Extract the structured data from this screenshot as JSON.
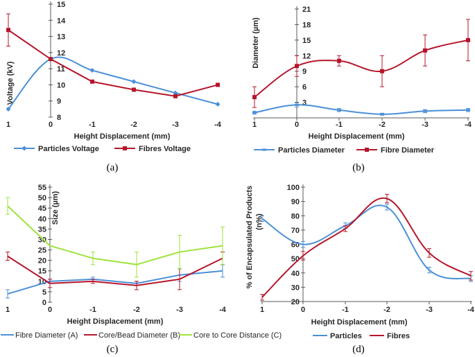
{
  "colors": {
    "blue": "#4a8fd8",
    "red": "#b5162b",
    "green": "#9ee33b",
    "axis": "#595959"
  },
  "chart_data": [
    {
      "id": "a",
      "type": "line",
      "caption": "(a)",
      "xlabel": "Height Displacement  (mm)",
      "ylabel": "Voltage (kV)",
      "x_ticks": [
        "1",
        "0",
        "-1",
        "-2",
        "-3",
        "-4"
      ],
      "ylim": [
        8,
        15
      ],
      "y_ticks": [
        8,
        9,
        10,
        11,
        12,
        13,
        14,
        15
      ],
      "series": [
        {
          "name": "Particles Voltage",
          "color": "blue",
          "marker": "diamond",
          "smooth": true,
          "values": [
            8.5,
            11.6,
            10.9,
            10.2,
            9.5,
            8.8
          ]
        },
        {
          "name": "Fibres Voltage",
          "color": "red",
          "marker": "square",
          "smooth": false,
          "values": [
            13.4,
            11.6,
            10.2,
            9.7,
            9.3,
            10.0
          ],
          "errors": [
            1.0,
            0,
            0,
            0,
            0,
            0
          ]
        }
      ]
    },
    {
      "id": "b",
      "type": "line",
      "caption": "(b)",
      "xlabel": "Height Displacement  (mm)",
      "ylabel": "Diameter (µm)",
      "x_ticks": [
        "1",
        "0",
        "-1",
        "-2",
        "-3",
        "-4"
      ],
      "ylim": [
        0,
        21
      ],
      "y_ticks": [
        3,
        6,
        9,
        12,
        15,
        18,
        21
      ],
      "series": [
        {
          "name": "Particles Diameter",
          "color": "blue",
          "marker": "dash",
          "smooth": true,
          "values": [
            1.0,
            2.5,
            1.5,
            0.7,
            1.3,
            1.5
          ],
          "errors": [
            0.3,
            0.4,
            0.3,
            0.2,
            0.3,
            0.3
          ]
        },
        {
          "name": "Fibre Diameter",
          "color": "red",
          "marker": "square",
          "smooth": true,
          "values": [
            4.0,
            10.0,
            11.0,
            9.0,
            13.0,
            15.0
          ],
          "errors": [
            2.0,
            2.0,
            1.0,
            3.0,
            3.0,
            4.0
          ]
        }
      ]
    },
    {
      "id": "c",
      "type": "line",
      "caption": "(c)",
      "xlabel": "Height Displacement (mm)",
      "ylabel": "Size (µm)",
      "x_ticks": [
        "1",
        "0",
        "-1",
        "-2",
        "-3",
        "-4"
      ],
      "ylim": [
        0,
        55
      ],
      "y_ticks": [
        0,
        5,
        10,
        15,
        20,
        25,
        30,
        35,
        40,
        45,
        50,
        55
      ],
      "series": [
        {
          "name": "Fibre Diameter (A)",
          "color": "blue",
          "smooth": false,
          "values": [
            4,
            10,
            11,
            9,
            13,
            15
          ],
          "errors": [
            2,
            1,
            1,
            1,
            3,
            3
          ]
        },
        {
          "name": "Core/Bead Diameter (B)",
          "color": "red",
          "smooth": false,
          "values": [
            22,
            9,
            10,
            8,
            11,
            21
          ],
          "errors": [
            2,
            2,
            1,
            2,
            5,
            3
          ]
        },
        {
          "name": "Core to Core Distance (C)",
          "color": "green",
          "smooth": false,
          "values": [
            46,
            27,
            21,
            18,
            24,
            27
          ],
          "errors": [
            4,
            0,
            3,
            6,
            8,
            9
          ]
        }
      ]
    },
    {
      "id": "d",
      "type": "line",
      "caption": "(d)",
      "xlabel": "Height Displacement (mm)",
      "ylabel_line1": "% of Encapsulated Products",
      "ylabel_line2": "(n%)",
      "x_ticks": [
        "1",
        "0",
        "-1",
        "-2",
        "-3",
        "-4"
      ],
      "ylim": [
        20,
        100
      ],
      "y_ticks": [
        20,
        30,
        40,
        50,
        60,
        70,
        80,
        90,
        100
      ],
      "series": [
        {
          "name": "Particles",
          "color": "blue",
          "smooth": true,
          "values": [
            78,
            60,
            73,
            86,
            42,
            36
          ],
          "errors": [
            2,
            2,
            2,
            2,
            2,
            2
          ]
        },
        {
          "name": "Fibres",
          "color": "red",
          "smooth": true,
          "values": [
            23,
            52,
            71,
            92,
            54,
            38
          ],
          "errors": [
            2,
            3,
            2,
            3,
            3,
            3
          ]
        }
      ]
    }
  ]
}
